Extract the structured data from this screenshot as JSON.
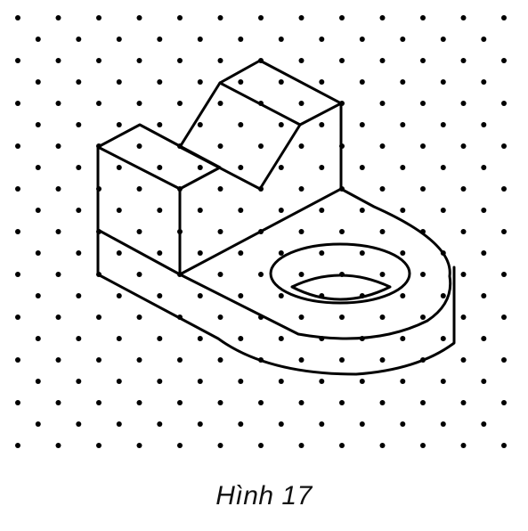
{
  "figure": {
    "caption": "Hình 17",
    "description_shape": "isometric-solid-on-dot-grid"
  },
  "colors": {
    "background": "#ffffff",
    "dots": "#000000",
    "lines": "#000000"
  }
}
